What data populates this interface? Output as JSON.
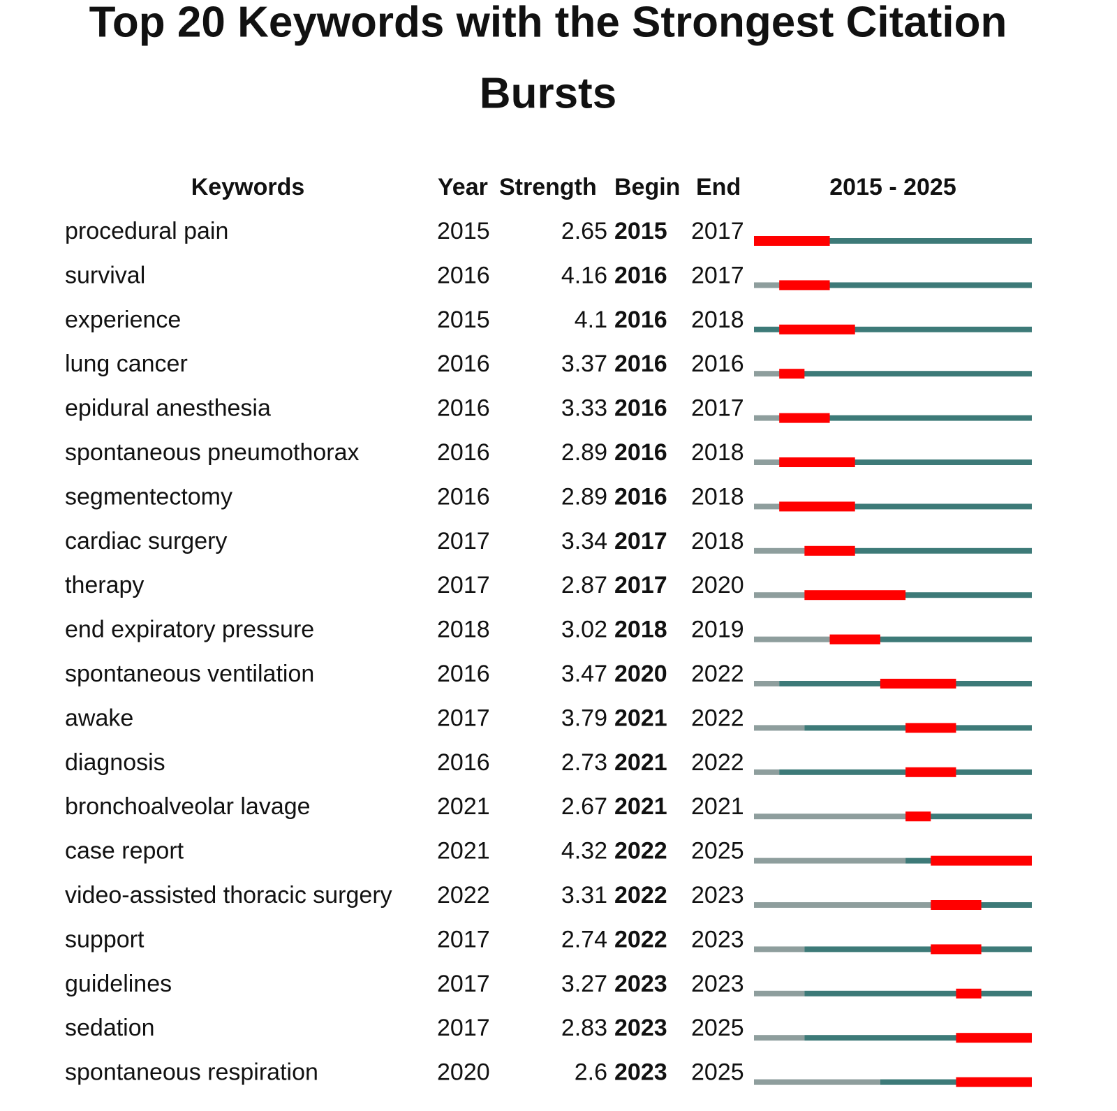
{
  "title": [
    "Top 20 Keywords with the Strongest Citation",
    "Bursts"
  ],
  "table": {
    "headers": [
      "Keywords",
      "Year",
      "Strength",
      "Begin",
      "End"
    ],
    "range_label": "2015 - 2025",
    "xlim": [
      2015,
      2025
    ],
    "colors": {
      "before": "#8e9e9d",
      "after": "#3d7a78",
      "burst": "#ff0000"
    },
    "rows": [
      {
        "keyword": "procedural pain",
        "year": 2015,
        "strength": 2.65,
        "begin": 2015,
        "end": 2017
      },
      {
        "keyword": "survival",
        "year": 2016,
        "strength": 4.16,
        "begin": 2016,
        "end": 2017
      },
      {
        "keyword": "experience",
        "year": 2015,
        "strength": 4.1,
        "begin": 2016,
        "end": 2018
      },
      {
        "keyword": "lung cancer",
        "year": 2016,
        "strength": 3.37,
        "begin": 2016,
        "end": 2016
      },
      {
        "keyword": "epidural anesthesia",
        "year": 2016,
        "strength": 3.33,
        "begin": 2016,
        "end": 2017
      },
      {
        "keyword": "spontaneous pneumothorax",
        "year": 2016,
        "strength": 2.89,
        "begin": 2016,
        "end": 2018
      },
      {
        "keyword": "segmentectomy",
        "year": 2016,
        "strength": 2.89,
        "begin": 2016,
        "end": 2018
      },
      {
        "keyword": "cardiac surgery",
        "year": 2017,
        "strength": 3.34,
        "begin": 2017,
        "end": 2018
      },
      {
        "keyword": "therapy",
        "year": 2017,
        "strength": 2.87,
        "begin": 2017,
        "end": 2020
      },
      {
        "keyword": "end expiratory pressure",
        "year": 2018,
        "strength": 3.02,
        "begin": 2018,
        "end": 2019
      },
      {
        "keyword": "spontaneous ventilation",
        "year": 2016,
        "strength": 3.47,
        "begin": 2020,
        "end": 2022
      },
      {
        "keyword": "awake",
        "year": 2017,
        "strength": 3.79,
        "begin": 2021,
        "end": 2022
      },
      {
        "keyword": "diagnosis",
        "year": 2016,
        "strength": 2.73,
        "begin": 2021,
        "end": 2022
      },
      {
        "keyword": "bronchoalveolar lavage",
        "year": 2021,
        "strength": 2.67,
        "begin": 2021,
        "end": 2021
      },
      {
        "keyword": "case report",
        "year": 2021,
        "strength": 4.32,
        "begin": 2022,
        "end": 2025
      },
      {
        "keyword": "video-assisted thoracic surgery",
        "year": 2022,
        "strength": 3.31,
        "begin": 2022,
        "end": 2023
      },
      {
        "keyword": "support",
        "year": 2017,
        "strength": 2.74,
        "begin": 2022,
        "end": 2023
      },
      {
        "keyword": "guidelines",
        "year": 2017,
        "strength": 3.27,
        "begin": 2023,
        "end": 2023
      },
      {
        "keyword": "sedation",
        "year": 2017,
        "strength": 2.83,
        "begin": 2023,
        "end": 2025
      },
      {
        "keyword": "spontaneous respiration",
        "year": 2020,
        "strength": 2.6,
        "begin": 2023,
        "end": 2025
      }
    ]
  }
}
